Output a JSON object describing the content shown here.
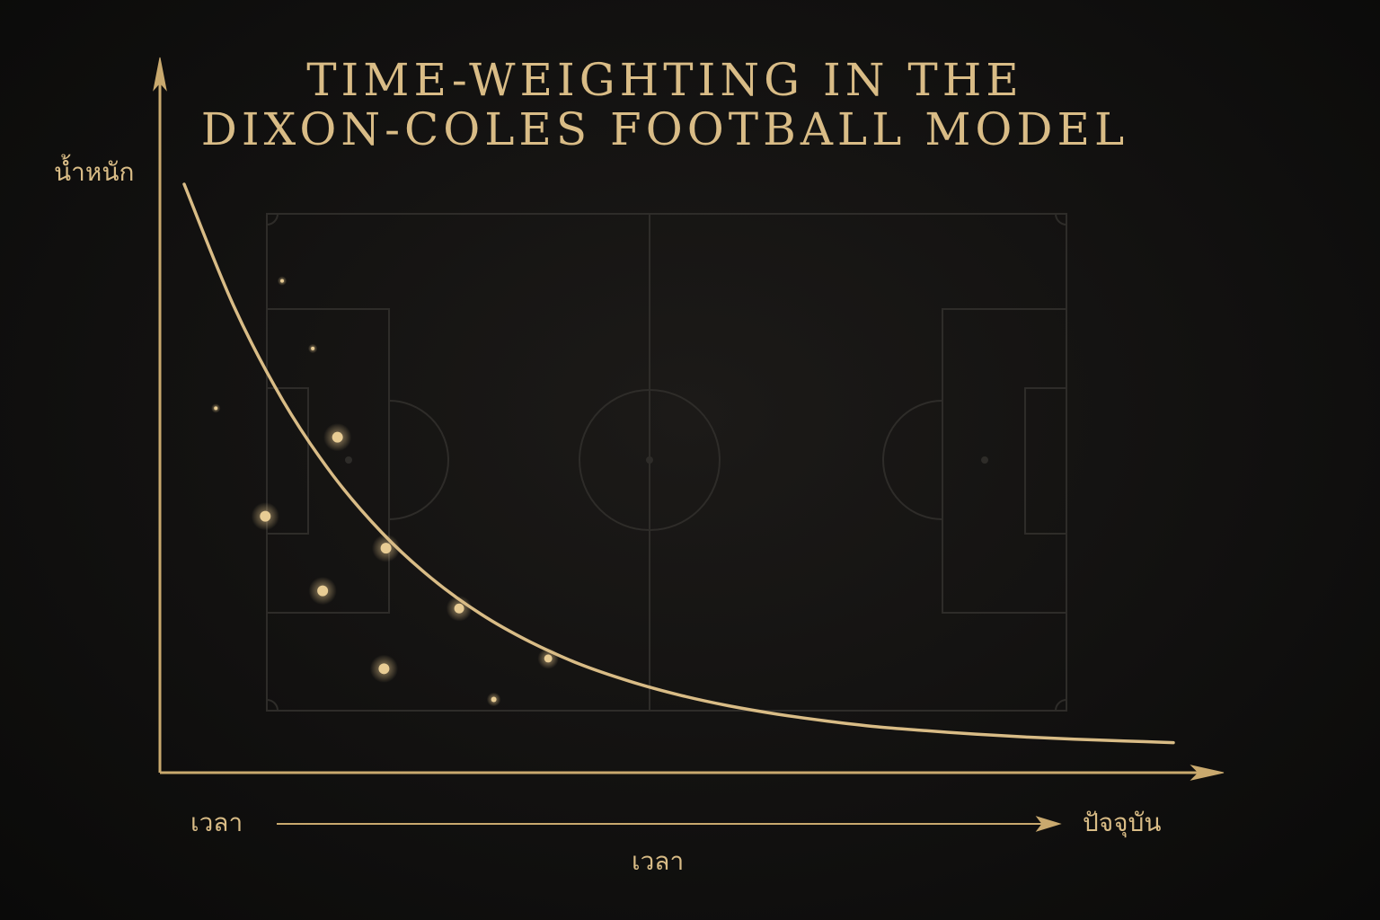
{
  "chart_data": {
    "type": "line",
    "title_lines": [
      "TIME-WEIGHTING IN THE",
      "DIXON-COLES FOOTBALL MODEL"
    ],
    "ylabel": "น้ำหนัก",
    "xlabel": "เวลา",
    "x_start_label": "เวลา",
    "x_end_label": "ปัจจุบัน",
    "series": [
      {
        "x": [
          0.0,
          0.05,
          0.1,
          0.15,
          0.2,
          0.25,
          0.3,
          0.35,
          0.4,
          0.45,
          0.5,
          0.55,
          0.6,
          0.65,
          0.7,
          0.75,
          0.8,
          0.85,
          0.9,
          0.95,
          1.0
        ],
        "y": [
          1.0,
          0.786,
          0.619,
          0.489,
          0.387,
          0.307,
          0.244,
          0.195,
          0.156,
          0.126,
          0.102,
          0.083,
          0.068,
          0.056,
          0.046,
          0.039,
          0.033,
          0.028,
          0.024,
          0.021,
          0.018
        ]
      }
    ],
    "scatter_points": [
      {
        "x": 0.155,
        "y": 0.555
      },
      {
        "x": 0.082,
        "y": 0.416
      },
      {
        "x": 0.14,
        "y": 0.285
      },
      {
        "x": 0.204,
        "y": 0.36
      },
      {
        "x": 0.278,
        "y": 0.254
      },
      {
        "x": 0.202,
        "y": 0.148
      },
      {
        "x": 0.368,
        "y": 0.166
      },
      {
        "x": 0.099,
        "y": 0.83
      },
      {
        "x": 0.13,
        "y": 0.711
      },
      {
        "x": 0.032,
        "y": 0.606
      },
      {
        "x": 0.313,
        "y": 0.094
      }
    ],
    "grid": false,
    "background": "football-pitch",
    "colors": {
      "accent": "#d9bc86",
      "pitch_line": "#2e2c29",
      "background": "#111010"
    }
  }
}
